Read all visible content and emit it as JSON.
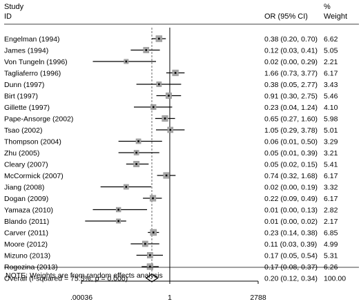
{
  "chart_data": {
    "type": "forest",
    "header": {
      "study": "Study",
      "id": "ID",
      "or_ci": "OR (95% CI)",
      "pct": "%",
      "weight": "Weight"
    },
    "x_scale": "log",
    "xlim": [
      0.00036,
      2788
    ],
    "x_ticks": [
      {
        "value": 0.00036,
        "label": ".00036"
      },
      {
        "value": 1,
        "label": "1"
      },
      {
        "value": 2788,
        "label": "2788"
      }
    ],
    "null_line": 1,
    "studies": [
      {
        "id": "Engelman (1994)",
        "or": 0.38,
        "lo": 0.2,
        "hi": 0.7,
        "ci_text": "0.38 (0.20, 0.70)",
        "weight": 6.62,
        "weight_text": "6.62"
      },
      {
        "id": "James (1994)",
        "or": 0.12,
        "lo": 0.03,
        "hi": 0.41,
        "ci_text": "0.12 (0.03, 0.41)",
        "weight": 5.05,
        "weight_text": "5.05"
      },
      {
        "id": "Von Tungeln (1996)",
        "or": 0.02,
        "lo": 0.001,
        "hi": 0.29,
        "ci_text": "0.02 (0.00, 0.29)",
        "weight": 2.21,
        "weight_text": "2.21"
      },
      {
        "id": "Tagliaferro (1996)",
        "or": 1.66,
        "lo": 0.73,
        "hi": 3.77,
        "ci_text": "1.66 (0.73, 3.77)",
        "weight": 6.17,
        "weight_text": "6.17"
      },
      {
        "id": "Dunn (1997)",
        "or": 0.38,
        "lo": 0.05,
        "hi": 2.77,
        "ci_text": "0.38 (0.05, 2.77)",
        "weight": 3.43,
        "weight_text": "3.43"
      },
      {
        "id": "Birt (1997)",
        "or": 0.91,
        "lo": 0.3,
        "hi": 2.75,
        "ci_text": "0.91 (0.30, 2.75)",
        "weight": 5.46,
        "weight_text": "5.46"
      },
      {
        "id": "Gillette (1997)",
        "or": 0.23,
        "lo": 0.04,
        "hi": 1.24,
        "ci_text": "0.23 (0.04, 1.24)",
        "weight": 4.1,
        "weight_text": "4.10"
      },
      {
        "id": "Pape-Ansorge (2002)",
        "or": 0.65,
        "lo": 0.27,
        "hi": 1.6,
        "ci_text": "0.65 (0.27, 1.60)",
        "weight": 5.98,
        "weight_text": "5.98"
      },
      {
        "id": "Tsao (2002)",
        "or": 1.05,
        "lo": 0.29,
        "hi": 3.78,
        "ci_text": "1.05 (0.29, 3.78)",
        "weight": 5.01,
        "weight_text": "5.01"
      },
      {
        "id": "Thompson (2004)",
        "or": 0.06,
        "lo": 0.01,
        "hi": 0.5,
        "ci_text": "0.06 (0.01, 0.50)",
        "weight": 3.29,
        "weight_text": "3.29"
      },
      {
        "id": "Zhu (2005)",
        "or": 0.05,
        "lo": 0.01,
        "hi": 0.39,
        "ci_text": "0.05 (0.01, 0.39)",
        "weight": 3.21,
        "weight_text": "3.21"
      },
      {
        "id": "Cleary (2007)",
        "or": 0.05,
        "lo": 0.02,
        "hi": 0.15,
        "ci_text": "0.05 (0.02, 0.15)",
        "weight": 5.41,
        "weight_text": "5.41"
      },
      {
        "id": "McCormick (2007)",
        "or": 0.74,
        "lo": 0.32,
        "hi": 1.68,
        "ci_text": "0.74 (0.32, 1.68)",
        "weight": 6.17,
        "weight_text": "6.17"
      },
      {
        "id": "Jiang (2008)",
        "or": 0.02,
        "lo": 0.002,
        "hi": 0.19,
        "ci_text": "0.02 (0.00, 0.19)",
        "weight": 3.32,
        "weight_text": "3.32"
      },
      {
        "id": "Dogan (2009)",
        "or": 0.22,
        "lo": 0.09,
        "hi": 0.49,
        "ci_text": "0.22 (0.09, 0.49)",
        "weight": 6.17,
        "weight_text": "6.17"
      },
      {
        "id": "Yamaza (2010)",
        "or": 0.01,
        "lo": 0.001,
        "hi": 0.13,
        "ci_text": "0.01 (0.00, 0.13)",
        "weight": 2.82,
        "weight_text": "2.82"
      },
      {
        "id": "Blando (2011)",
        "or": 0.01,
        "lo": 0.0005,
        "hi": 0.02,
        "ci_text": "0.01 (0.00, 0.02)",
        "weight": 2.17,
        "weight_text": "2.17"
      },
      {
        "id": "Carver (2011)",
        "or": 0.23,
        "lo": 0.14,
        "hi": 0.38,
        "ci_text": "0.23 (0.14, 0.38)",
        "weight": 6.85,
        "weight_text": "6.85"
      },
      {
        "id": "Moore (2012)",
        "or": 0.11,
        "lo": 0.03,
        "hi": 0.39,
        "ci_text": "0.11 (0.03, 0.39)",
        "weight": 4.99,
        "weight_text": "4.99"
      },
      {
        "id": "Mizuno (2013)",
        "or": 0.17,
        "lo": 0.05,
        "hi": 0.54,
        "ci_text": "0.17 (0.05, 0.54)",
        "weight": 5.31,
        "weight_text": "5.31"
      },
      {
        "id": "Rogozina (2013)",
        "or": 0.17,
        "lo": 0.08,
        "hi": 0.37,
        "ci_text": "0.17 (0.08, 0.37)",
        "weight": 6.26,
        "weight_text": "6.26"
      }
    ],
    "overall": {
      "label": "Overall  (I-squared = 75.5%, p = 0.000)",
      "or": 0.2,
      "lo": 0.12,
      "hi": 0.34,
      "ci_text": "0.20 (0.12, 0.34)",
      "weight_text": "100.00"
    },
    "note": "NOTE: Weights are from random effects analysis"
  }
}
